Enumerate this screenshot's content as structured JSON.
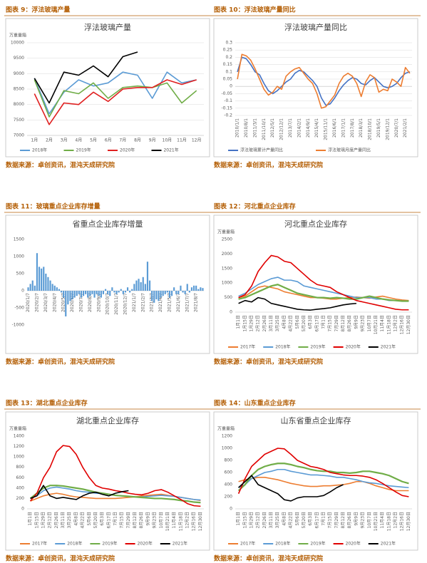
{
  "panels": [
    {
      "caption": "图表 9：浮法玻璃产量",
      "source": "数据来源：卓创资讯，混沌天成研究院"
    },
    {
      "caption": "图表 10：浮法玻璃产量同比",
      "source": "数据来源：卓创资讯，混沌天成研究院"
    },
    {
      "caption": "图表 11：玻璃重点企业库存增量",
      "source": "数据来源：卓创资讯，混沌天成研究院"
    },
    {
      "caption": "图表 12：河北重点企业库存",
      "source": "数据来源：卓创资讯，混沌天成研究院"
    },
    {
      "caption": "图表 13：湖北重点企业库存",
      "source": "数据来源：卓创资讯，混沌天成研究院"
    },
    {
      "caption": "图表 14：山东重点企业库存",
      "source": "数据来源：卓创资讯，混沌天成研究院"
    }
  ],
  "chart_data": [
    {
      "type": "line",
      "title": "浮法玻璃产量",
      "y_label": "万重量箱",
      "grid": true,
      "categories": [
        "1月",
        "2月",
        "3月",
        "4月",
        "5月",
        "6月",
        "7月",
        "8月",
        "9月",
        "10月",
        "11月",
        "12月"
      ],
      "ylim": [
        7000,
        10000
      ],
      "yticks": [
        7000,
        7500,
        8000,
        8500,
        9000,
        9500,
        10000
      ],
      "series": [
        {
          "name": "2018年",
          "color": "#5b9bd5",
          "values": [
            8850,
            7700,
            8400,
            8800,
            8600,
            8700,
            9050,
            8950,
            8200,
            9050,
            8700,
            8800
          ]
        },
        {
          "name": "2019年",
          "color": "#70ad47",
          "values": [
            8800,
            7600,
            8450,
            8350,
            8700,
            8200,
            8550,
            8600,
            8550,
            8700,
            8050,
            8450
          ]
        },
        {
          "name": "2020年",
          "color": "#e02020",
          "values": [
            8350,
            7350,
            8050,
            8000,
            8400,
            8100,
            8500,
            8550,
            8550,
            8800,
            8650,
            8800
          ]
        },
        {
          "name": "2021年",
          "color": "#000000",
          "values": [
            8850,
            8050,
            9050,
            8950,
            9250,
            8900,
            9550,
            9700,
            null,
            null,
            null,
            null
          ]
        }
      ]
    },
    {
      "type": "line",
      "title": "浮法玻璃产量同比",
      "grid": true,
      "categories": [
        "2010/1/1",
        null,
        "2010/8/1",
        null,
        "2011/3/1",
        null,
        "2011/10/1",
        null,
        "2012/5/1",
        null,
        "2012/12/1",
        null,
        "2013/7/1",
        null,
        "2014/2/1",
        null,
        "2014/9/1",
        null,
        "2015/4/1",
        null,
        "2015/11/1",
        null,
        "2016/6/1",
        null,
        "2017/1/1",
        null,
        "2017/8/1",
        null,
        "2018/3/1",
        null,
        "2018/10/1",
        null,
        "2019/5/1",
        null,
        "2019/12/1",
        null,
        "2020/7/1",
        null,
        "2021/2/1",
        null
      ],
      "ylim": [
        -0.2,
        0.3
      ],
      "yticks": [
        -0.2,
        -0.15,
        -0.1,
        -0.05,
        0,
        0.05,
        0.1,
        0.15,
        0.2,
        0.25,
        0.3
      ],
      "series": [
        {
          "name": "浮法玻璃累计产量同比",
          "color": "#4472c4",
          "values": [
            0.1,
            0.2,
            0.19,
            0.15,
            0.1,
            0.08,
            0.02,
            -0.03,
            -0.05,
            -0.03,
            0.0,
            0.03,
            0.05,
            0.09,
            0.11,
            0.1,
            0.07,
            0.04,
            0.0,
            -0.08,
            -0.13,
            -0.12,
            -0.08,
            -0.03,
            0.01,
            0.04,
            0.06,
            0.05,
            0.02,
            0.01,
            0.04,
            0.06,
            0.03,
            0.0,
            -0.01,
            0.0,
            0.02,
            0.06,
            0.09,
            0.1
          ]
        },
        {
          "name": "浮法玻璃月度产量同比",
          "color": "#ed7d31",
          "values": [
            0.05,
            0.22,
            0.21,
            0.18,
            0.12,
            0.05,
            -0.02,
            -0.06,
            -0.04,
            0.0,
            -0.02,
            0.07,
            0.1,
            0.12,
            0.13,
            0.09,
            0.05,
            0.02,
            -0.05,
            -0.15,
            -0.14,
            -0.1,
            -0.06,
            0.02,
            0.07,
            0.09,
            0.07,
            0.02,
            -0.07,
            0.03,
            0.08,
            0.06,
            -0.04,
            -0.02,
            -0.03,
            0.05,
            0.03,
            0.0,
            0.13,
            0.09
          ]
        }
      ]
    },
    {
      "type": "bar",
      "title": "省重点企业库存增量",
      "grid": false,
      "color": "#5b9bd5",
      "categories": [
        "2020/1/7",
        null,
        null,
        null,
        "2020/2/7",
        null,
        null,
        null,
        "2020/3/7",
        null,
        null,
        null,
        "2020/4/7",
        null,
        null,
        null,
        "2020/5/7",
        null,
        null,
        null,
        "2020/6/7",
        null,
        null,
        null,
        "2020/7/7",
        null,
        null,
        null,
        "2020/8/7",
        null,
        null,
        null,
        "2020/9/7",
        null,
        null,
        null,
        "2020/10/7",
        null,
        null,
        null,
        "2020/11/7",
        null,
        null,
        null,
        "2020/12/7",
        null,
        null,
        null,
        "2021/1/7",
        null,
        null,
        null,
        "2021/2/7",
        null,
        null,
        null,
        "2021/3/7",
        null,
        null,
        null,
        "2021/4/7",
        null,
        null,
        null,
        "2021/5/7",
        null,
        null,
        null,
        "2021/6/7",
        null,
        null,
        null,
        "2021/7/7",
        null,
        null,
        null,
        "2021/8/7",
        null,
        null,
        null
      ],
      "values": [
        100,
        200,
        300,
        150,
        1100,
        700,
        650,
        700,
        500,
        400,
        300,
        200,
        150,
        100,
        50,
        -50,
        -200,
        -750,
        -400,
        -300,
        -250,
        -200,
        -150,
        -100,
        -200,
        -150,
        -100,
        -200,
        -150,
        -100,
        -200,
        -100,
        -150,
        -200,
        -100,
        50,
        -100,
        -150,
        100,
        -50,
        -100,
        -50,
        50,
        -100,
        -50,
        100,
        -50,
        50,
        200,
        300,
        350,
        250,
        400,
        200,
        850,
        300,
        -300,
        -350,
        -250,
        -300,
        -200,
        -150,
        -100,
        -50,
        -200,
        -150,
        100,
        -100,
        -100,
        150,
        -50,
        -100,
        200,
        -50,
        100,
        150,
        150,
        50,
        100,
        80
      ],
      "ylim": [
        -1000,
        1500
      ],
      "yticks": [
        -1000,
        -500,
        0,
        500,
        1000,
        1500
      ]
    },
    {
      "type": "line",
      "title": "河北重点企业库存",
      "y_label": "万重量箱",
      "grid": false,
      "categories": [
        "1月1日",
        "1月15日",
        "1月29日",
        "2月12日",
        "2月26日",
        "3月11日",
        "3月25日",
        "4月8日",
        "4月22日",
        "5月6日",
        "5月20日",
        "6月3日",
        "6月17日",
        "7月1日",
        "7月15日",
        "7月29日",
        "8月12日",
        "8月26日",
        "9月9日",
        "9月23日",
        "10月7日",
        "10月21日",
        "11月4日",
        "11月18日",
        "12月2日",
        "12月16日",
        "12月30日"
      ],
      "ylim": [
        0,
        2500
      ],
      "yticks": [
        0,
        500,
        1000,
        1500,
        2000,
        2500
      ],
      "series": [
        {
          "name": "2017年",
          "color": "#ed7d31",
          "values": [
            500,
            550,
            700,
            850,
            900,
            850,
            800,
            700,
            650,
            600,
            550,
            500,
            500,
            480,
            450,
            450,
            480,
            500,
            520,
            500,
            480,
            520,
            550,
            500,
            450,
            420,
            400
          ]
        },
        {
          "name": "2018年",
          "color": "#5b9bd5",
          "values": [
            550,
            650,
            800,
            950,
            1050,
            1150,
            1200,
            1100,
            1100,
            1050,
            900,
            850,
            800,
            750,
            700,
            650,
            600,
            550,
            500,
            500,
            500,
            450,
            450,
            400,
            400,
            380,
            380
          ]
        },
        {
          "name": "2019年",
          "color": "#70ad47",
          "values": [
            450,
            500,
            600,
            700,
            800,
            900,
            950,
            850,
            750,
            650,
            600,
            550,
            500,
            500,
            480,
            500,
            480,
            450,
            450,
            500,
            550,
            500,
            450,
            420,
            400,
            380,
            380
          ]
        },
        {
          "name": "2020年",
          "color": "#e00000",
          "values": [
            500,
            600,
            900,
            1400,
            1700,
            1950,
            1900,
            1750,
            1700,
            1500,
            1300,
            1100,
            950,
            900,
            850,
            700,
            600,
            500,
            400,
            350,
            300,
            250,
            200,
            150,
            100,
            80,
            80
          ]
        },
        {
          "name": "2021年",
          "color": "#000000",
          "values": [
            300,
            400,
            350,
            500,
            450,
            300,
            250,
            200,
            150,
            100,
            80,
            70,
            100,
            120,
            150,
            200,
            250,
            280,
            300,
            null,
            null,
            null,
            null,
            null,
            null,
            null,
            null
          ]
        }
      ]
    },
    {
      "type": "line",
      "title": "湖北重点企业库存",
      "y_label": "万重量箱",
      "grid": false,
      "categories": [
        "1月1日",
        "1月15日",
        "1月29日",
        "2月12日",
        "2月26日",
        "3月11日",
        "3月25日",
        "4月8日",
        "4月22日",
        "5月6日",
        "5月20日",
        "6月3日",
        "6月17日",
        "7月1日",
        "7月15日",
        "7月29日",
        "8月12日",
        "8月26日",
        "9月9日",
        "9月23日",
        "10月7日",
        "10月21日",
        "11月4日",
        "11月18日",
        "12月2日",
        "12月16日",
        "12月30日"
      ],
      "ylim": [
        0,
        1400
      ],
      "yticks": [
        0,
        200,
        400,
        600,
        800,
        1000,
        1200,
        1400
      ],
      "series": [
        {
          "name": "2017年",
          "color": "#ed7d31",
          "values": [
            150,
            200,
            250,
            280,
            300,
            280,
            250,
            230,
            220,
            210,
            200,
            200,
            200,
            200,
            210,
            220,
            230,
            250,
            260,
            270,
            280,
            260,
            240,
            220,
            200,
            180,
            160
          ]
        },
        {
          "name": "2018年",
          "color": "#5b9bd5",
          "values": [
            200,
            250,
            350,
            400,
            420,
            400,
            380,
            350,
            330,
            320,
            300,
            300,
            280,
            260,
            250,
            240,
            230,
            230,
            240,
            250,
            260,
            250,
            240,
            220,
            200,
            180,
            170
          ]
        },
        {
          "name": "2019年",
          "color": "#70ad47",
          "values": [
            200,
            300,
            400,
            450,
            450,
            440,
            420,
            400,
            380,
            350,
            320,
            300,
            280,
            260,
            250,
            240,
            230,
            220,
            210,
            200,
            200,
            190,
            180,
            160,
            150,
            130,
            120
          ]
        },
        {
          "name": "2020年",
          "color": "#e00000",
          "values": [
            150,
            300,
            600,
            800,
            1100,
            1220,
            1200,
            1050,
            800,
            600,
            450,
            400,
            380,
            350,
            330,
            300,
            280,
            270,
            300,
            350,
            370,
            320,
            250,
            180,
            100,
            60,
            50
          ]
        },
        {
          "name": "2021年",
          "color": "#000000",
          "values": [
            200,
            250,
            450,
            250,
            200,
            220,
            200,
            180,
            250,
            300,
            320,
            280,
            250,
            300,
            330,
            350,
            null,
            null,
            null,
            null,
            null,
            null,
            null,
            null,
            null,
            null,
            null
          ]
        }
      ]
    },
    {
      "type": "line",
      "title": "山东省重点企业库存",
      "y_label": "万重量箱",
      "grid": false,
      "categories": [
        "1月1日",
        "1月15日",
        "1月29日",
        "2月12日",
        "2月26日",
        "3月11日",
        "3月25日",
        "4月8日",
        "4月22日",
        "5月6日",
        "5月20日",
        "6月3日",
        "6月17日",
        "7月1日",
        "7月15日",
        "7月29日",
        "8月12日",
        "8月26日",
        "9月9日",
        "9月23日",
        "10月7日",
        "10月21日",
        "11月4日",
        "11月18日",
        "12月2日",
        "12月16日",
        "12月30日"
      ],
      "ylim": [
        0,
        1200
      ],
      "yticks": [
        0,
        200,
        400,
        600,
        800,
        1000,
        1200
      ],
      "series": [
        {
          "name": "2017年",
          "color": "#ed7d31",
          "values": [
            450,
            480,
            500,
            520,
            520,
            500,
            480,
            450,
            420,
            400,
            380,
            370,
            370,
            380,
            380,
            390,
            400,
            420,
            450,
            450,
            420,
            380,
            350,
            320,
            300,
            300,
            300
          ]
        },
        {
          "name": "2018年",
          "color": "#5b9bd5",
          "values": [
            350,
            400,
            500,
            550,
            600,
            620,
            650,
            650,
            620,
            600,
            580,
            560,
            560,
            550,
            540,
            520,
            520,
            500,
            480,
            450,
            430,
            420,
            400,
            380,
            370,
            360,
            350
          ]
        },
        {
          "name": "2019年",
          "color": "#70ad47",
          "values": [
            300,
            400,
            550,
            650,
            700,
            730,
            750,
            750,
            730,
            700,
            680,
            650,
            630,
            620,
            620,
            600,
            600,
            590,
            600,
            620,
            620,
            600,
            580,
            550,
            500,
            450,
            420
          ]
        },
        {
          "name": "2020年",
          "color": "#e00000",
          "values": [
            250,
            500,
            700,
            800,
            900,
            950,
            1000,
            990,
            900,
            800,
            750,
            700,
            680,
            650,
            600,
            580,
            560,
            550,
            550,
            540,
            520,
            480,
            420,
            350,
            280,
            220,
            200
          ]
        },
        {
          "name": "2021年",
          "color": "#000000",
          "values": [
            350,
            450,
            550,
            400,
            350,
            300,
            250,
            150,
            130,
            180,
            200,
            200,
            200,
            220,
            280,
            350,
            400,
            null,
            null,
            null,
            null,
            null,
            null,
            null,
            null,
            null,
            null
          ]
        }
      ]
    }
  ]
}
